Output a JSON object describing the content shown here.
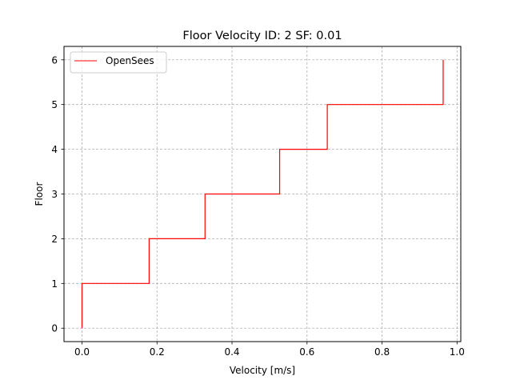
{
  "chart_data": {
    "type": "line",
    "title": "Floor Velocity ID: 2  SF: 0.01",
    "xlabel": "Velocity [m/s]",
    "ylabel": "Floor",
    "xlim": [
      -0.048,
      1.01
    ],
    "ylim": [
      -0.3,
      6.3
    ],
    "xticks": [
      0.0,
      0.2,
      0.4,
      0.6,
      0.8,
      1.0
    ],
    "xtick_labels": [
      "0.0",
      "0.2",
      "0.4",
      "0.6",
      "0.8",
      "1.0"
    ],
    "yticks": [
      0,
      1,
      2,
      3,
      4,
      5,
      6
    ],
    "ytick_labels": [
      "0",
      "1",
      "2",
      "3",
      "4",
      "5",
      "6"
    ],
    "grid": true,
    "legend_position": "upper-left",
    "series": [
      {
        "name": "OpenSees",
        "color": "#ff0000",
        "step": "post",
        "x": [
          0.0,
          0.179,
          0.328,
          0.527,
          0.654,
          0.963,
          0.963
        ],
        "y": [
          0,
          1,
          2,
          3,
          4,
          5,
          6
        ]
      }
    ]
  }
}
